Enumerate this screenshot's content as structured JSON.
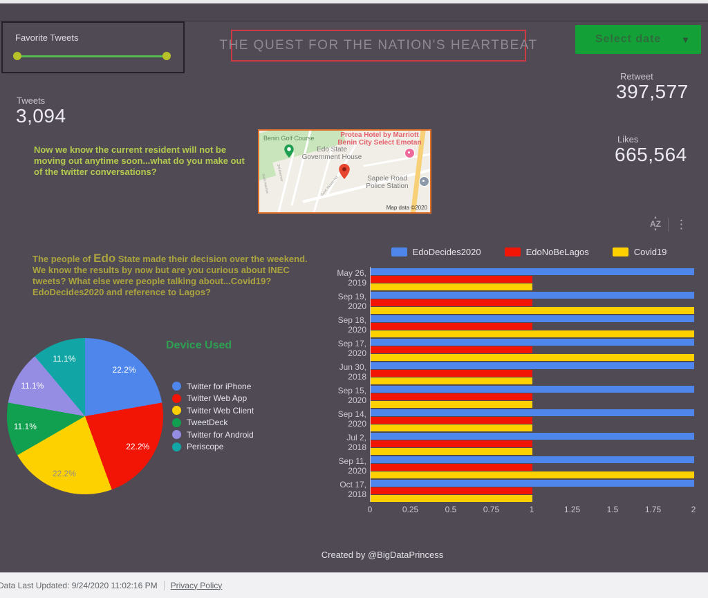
{
  "header": {
    "filter_title": "Favorite Tweets",
    "dashboard_title": "THE QUEST FOR THE NATION'S HEARTBEAT",
    "date_button_label": "Select date",
    "caret_icon": "▼"
  },
  "stats": {
    "tweets": {
      "label": "Tweets",
      "value": "3,094"
    },
    "retweet": {
      "label": "Retweet",
      "value": "397,577"
    },
    "likes": {
      "label": "Likes",
      "value": "665,564"
    }
  },
  "notes": {
    "note1": "Now we know the current resident will not be moving out anytime soon...what do you make out of the twitter conversations?",
    "note2_prefix": "The people of ",
    "note2_edo": "Edo",
    "note2_suffix": " State made their decision over the weekend. We know the results by now but are you curious about INEC tweets? What else were people talking about...Covid19? EdoDecides2020 and reference to Lagos?"
  },
  "map": {
    "golf_course": "Benin Golf Course",
    "hotel_line1": "Protea Hotel by Marriott",
    "hotel_line2": "Benin City Select Emotan",
    "gov_house_line1": "Edo State",
    "gov_house_line2": "Government House",
    "police_line1": "Sapele Road",
    "police_line2": "Police Station",
    "street1": "3rd Avenue",
    "street2": "Sixth Avenue",
    "street3": "Govt. House Rd",
    "copyright": "Map data ©2020"
  },
  "icons": {
    "sort_up": "▲",
    "sort_az": "AZ",
    "sort_down": "▼",
    "kebab": "⋮"
  },
  "chart_data": [
    {
      "type": "bar",
      "orientation": "horizontal",
      "categories": [
        "May 26, 2019",
        "Sep 19, 2020",
        "Sep 18, 2020",
        "Sep 17, 2020",
        "Jun 30, 2018",
        "Sep 15, 2020",
        "Sep 14, 2020",
        "Jul 2, 2018",
        "Sep 11, 2020",
        "Oct 17, 2018"
      ],
      "series": [
        {
          "name": "EdoDecides2020",
          "color": "#4e86ec",
          "values": [
            2,
            2,
            2,
            2,
            2,
            2,
            2,
            2,
            2,
            2
          ]
        },
        {
          "name": "EdoNoBeLagos",
          "color": "#f21505",
          "values": [
            1,
            1,
            1,
            1,
            1,
            1,
            1,
            1,
            1,
            1
          ]
        },
        {
          "name": "Covid19",
          "color": "#fdd000",
          "values": [
            1,
            2,
            2,
            2,
            1,
            1,
            1,
            1,
            2,
            1
          ]
        }
      ],
      "xlim": [
        0,
        2
      ],
      "xticks": [
        "0",
        "0.25",
        "0.5",
        "0.75",
        "1",
        "1.25",
        "1.5",
        "1.75",
        "2"
      ],
      "legend_position": "top",
      "grid": false
    },
    {
      "type": "pie",
      "title": "Device Used",
      "labels": [
        "Twitter for iPhone",
        "Twitter Web App",
        "Twitter Web Client",
        "TweetDeck",
        "Twitter for Android",
        "Periscope"
      ],
      "values": [
        22.2,
        22.2,
        22.2,
        11.1,
        11.1,
        11.1
      ],
      "value_labels": [
        "22.2%",
        "22.2%",
        "22.2%",
        "11.1%",
        "11.1%",
        "11.1%"
      ],
      "colors": [
        "#4e86ec",
        "#f21505",
        "#fdd000",
        "#11a050",
        "#958ce4",
        "#12a5a5"
      ],
      "slice_label_colors": [
        "#ffffff",
        "#ffffff",
        "#8d8d8d",
        "#ffffff",
        "#ffffff",
        "#ffffff"
      ],
      "legend_position": "right"
    }
  ],
  "footer": {
    "created_by": "Created by @BigDataPrincess",
    "last_updated": "Data Last Updated: 9/24/2020 11:02:16 PM",
    "privacy": "Privacy Policy"
  }
}
